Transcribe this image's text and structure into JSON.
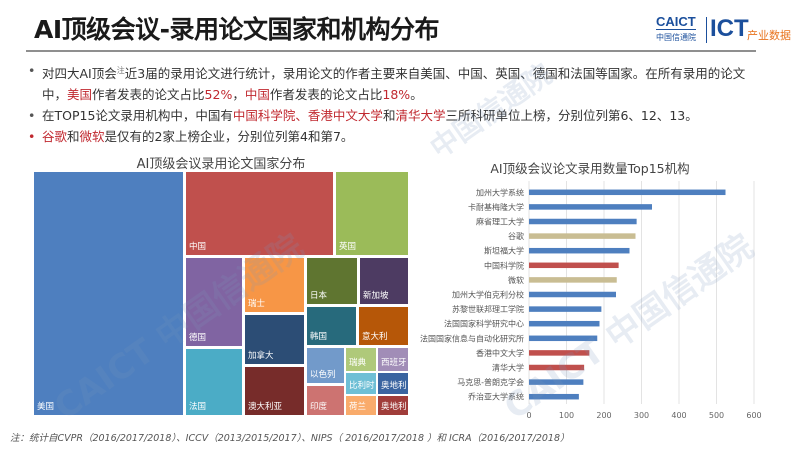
{
  "header": {
    "title": "AI顶级会议-录用论文国家和机构分布",
    "logo": {
      "caict": "CAICT",
      "caict_cn": "中国信通院",
      "ict": "ICT",
      "industry": "产业数据"
    }
  },
  "bullets": [
    {
      "parts": [
        {
          "t": "对四大AI顶会",
          "hl": false
        },
        {
          "t": "注",
          "hl": false,
          "sup": true
        },
        {
          "t": "近3届的录用论文进行统计，录用论文的作者主要来自美国、中国、英国、德国和法国等国家。在所有录用的论文中，",
          "hl": false
        },
        {
          "t": "美国",
          "hl": true
        },
        {
          "t": "作者发表的论文占比",
          "hl": false
        },
        {
          "t": "52%",
          "hl": true
        },
        {
          "t": "，",
          "hl": false
        },
        {
          "t": "中国",
          "hl": true
        },
        {
          "t": "作者发表的论文占比",
          "hl": false
        },
        {
          "t": "18%",
          "hl": true
        },
        {
          "t": "。",
          "hl": false
        }
      ]
    },
    {
      "parts": [
        {
          "t": "在TOP15论文录用机构中，中国有",
          "hl": false
        },
        {
          "t": "中国科学院、香港中文大学",
          "hl": true
        },
        {
          "t": "和",
          "hl": false
        },
        {
          "t": "清华大学",
          "hl": true
        },
        {
          "t": "三所科研单位上榜，分别位列第6、12、13。",
          "hl": false
        }
      ]
    },
    {
      "red_bullet": true,
      "parts": [
        {
          "t": "谷歌",
          "hl": true
        },
        {
          "t": "和",
          "hl": false
        },
        {
          "t": "微软",
          "hl": true
        },
        {
          "t": "是仅有的2家上榜企业，分别位列第4和第7。",
          "hl": false
        }
      ]
    }
  ],
  "treemap": {
    "title": "AI顶级会议录用论文国家分布",
    "cells": [
      {
        "label": "美国",
        "color": "#4e7fbf"
      },
      {
        "label": "中国",
        "color": "#c0504d"
      },
      {
        "label": "英国",
        "color": "#9bbb59"
      },
      {
        "label": "德国",
        "color": "#8064a2"
      },
      {
        "label": "法国",
        "color": "#4bacc6"
      },
      {
        "label": "瑞士",
        "color": "#f79646"
      },
      {
        "label": "加拿大",
        "color": "#2c4d75"
      },
      {
        "label": "澳大利亚",
        "color": "#772c2a"
      },
      {
        "label": "日本",
        "color": "#5f7530"
      },
      {
        "label": "新加坡",
        "color": "#4d3b62"
      },
      {
        "label": "韩国",
        "color": "#276a7c"
      },
      {
        "label": "意大利",
        "color": "#b65708"
      },
      {
        "label": "以色列",
        "color": "#729aca"
      },
      {
        "label": "印度",
        "color": "#cd7371"
      },
      {
        "label": "瑞典",
        "color": "#afc97a"
      },
      {
        "label": "西班牙",
        "color": "#a18db7"
      },
      {
        "label": "比利时",
        "color": "#6ebfd5"
      },
      {
        "label": "奥地利",
        "color": "#3a64a0"
      },
      {
        "label": "荷兰",
        "color": "#f9ab6b"
      },
      {
        "label": "奥地利",
        "color": "#a03d3a"
      }
    ]
  },
  "chart_data": {
    "type": "bar",
    "orientation": "horizontal",
    "title": "AI顶级会议论文录用数量Top15机构",
    "xlabel": "",
    "ylabel": "",
    "xlim": [
      0,
      600
    ],
    "xticks": [
      "0",
      "100",
      "200",
      "300",
      "400",
      "500",
      "600"
    ],
    "grid": true,
    "categories": [
      "加州大学系统",
      "卡耐基梅隆大学",
      "麻省理工大学",
      "谷歌",
      "斯坦福大学",
      "中国科学院",
      "微软",
      "加州大学伯克利分校",
      "苏黎世联邦理工学院",
      "法国国家科学研究中心",
      "法国国家信息与自动化研究所",
      "香港中文大学",
      "清华大学",
      "马克思-普朗克学会",
      "乔治亚大学系统"
    ],
    "values": [
      524,
      328,
      287,
      284,
      268,
      239,
      234,
      232,
      193,
      188,
      182,
      161,
      147,
      145,
      133
    ],
    "groups": [
      "other",
      "other",
      "other",
      "company",
      "other",
      "china",
      "company",
      "other",
      "other",
      "other",
      "other",
      "china",
      "china",
      "other",
      "other"
    ],
    "colors": {
      "other": "#4e7fbf",
      "china": "#c0504d",
      "company": "#c9bd93"
    }
  },
  "footnote": "注：统计自CVPR（2016/2017/2018）、ICCV（2013/2015/2017）、NIPS（ 2016/2017/2018 ）和 ICRA（2016/2017/2018）",
  "watermarks": [
    "CAICT 中国信通院",
    "中国信通院",
    "CAICT 中国信通院"
  ]
}
